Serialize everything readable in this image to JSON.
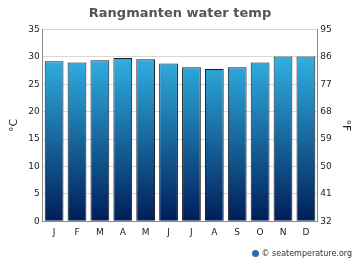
{
  "chart_data": {
    "type": "bar",
    "title": "Rangmanten water temp",
    "categories": [
      "J",
      "F",
      "M",
      "A",
      "M",
      "J",
      "J",
      "A",
      "S",
      "O",
      "N",
      "D"
    ],
    "values": [
      29.2,
      29.0,
      29.4,
      29.8,
      29.6,
      28.8,
      28.1,
      27.8,
      28.1,
      29.0,
      30.1,
      30.1
    ],
    "color": "#38c8f8",
    "y_label": "°C",
    "ylim": [
      0,
      35
    ],
    "yticks": [
      0,
      5,
      10,
      15,
      20,
      25,
      30,
      35
    ],
    "y2_label": "°F",
    "y2lim": [
      32,
      95
    ],
    "y2ticks": [
      32,
      41,
      50,
      59,
      68,
      77,
      86,
      95
    ],
    "grid": true,
    "annotation": "© seatemperature.org"
  }
}
